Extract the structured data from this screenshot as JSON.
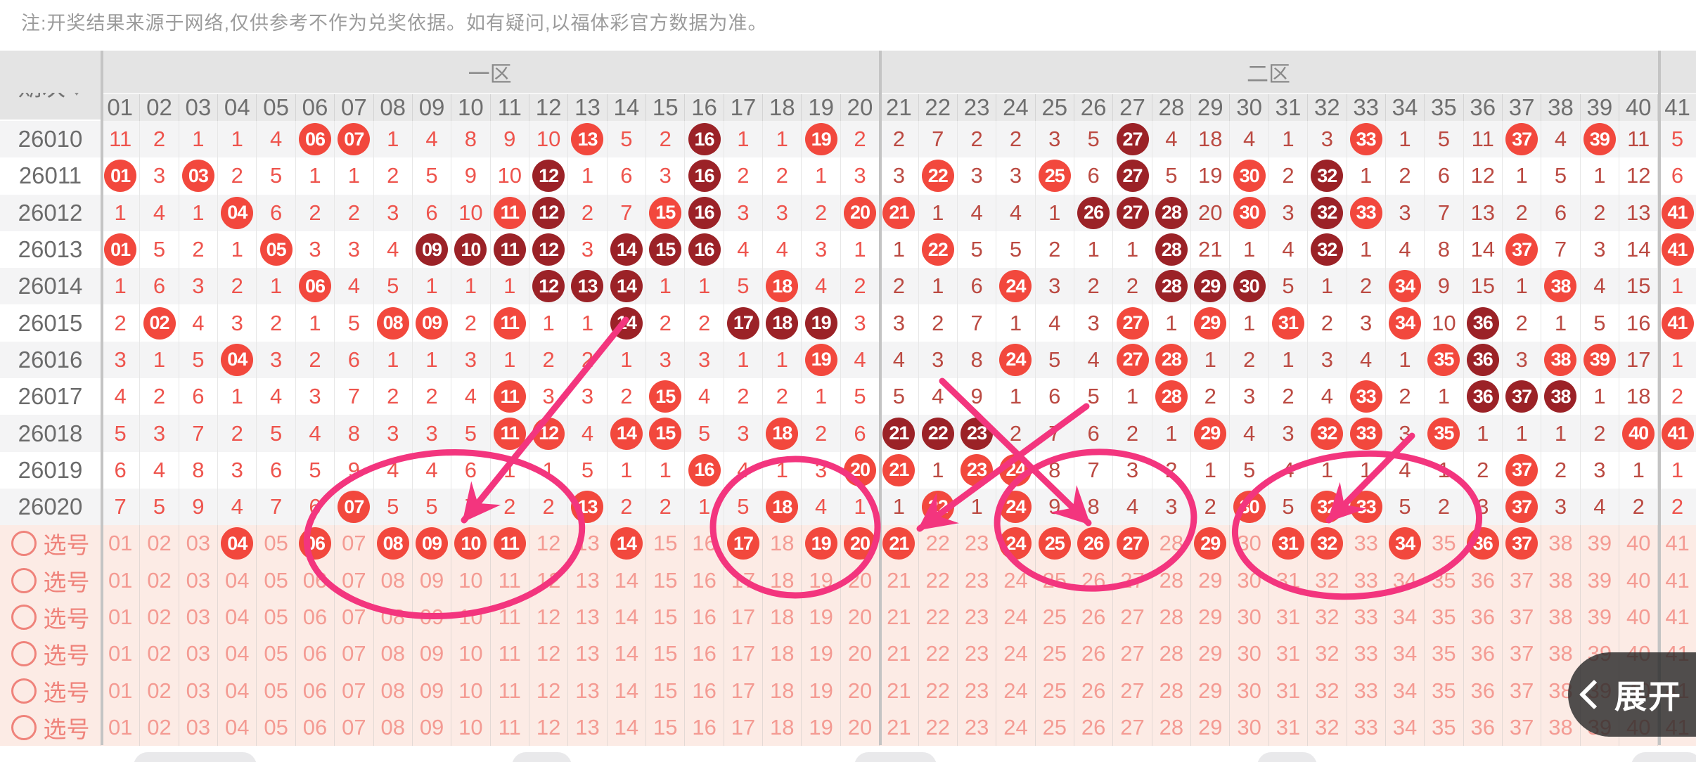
{
  "note": "注:开奖结果来源于网络,仅供参考不作为兑奖依据。如有疑问,以福体彩官方数据为准。",
  "header": {
    "period_label": "期次",
    "zones": [
      {
        "label": "一区",
        "col_span": 20
      },
      {
        "label": "二区",
        "col_span": 20
      },
      {
        "label": "",
        "col_span": 1
      }
    ],
    "columns": [
      "01",
      "02",
      "03",
      "04",
      "05",
      "06",
      "07",
      "08",
      "09",
      "10",
      "11",
      "12",
      "13",
      "14",
      "15",
      "16",
      "17",
      "18",
      "19",
      "20",
      "21",
      "22",
      "23",
      "24",
      "25",
      "26",
      "27",
      "28",
      "29",
      "30",
      "31",
      "32",
      "33",
      "34",
      "35",
      "36",
      "37",
      "38",
      "39",
      "40",
      "41"
    ]
  },
  "legend_note": "cells: plain string = miss count, *NN = drawn ball (bright red), #NN = drawn ball (dark red)",
  "rows": [
    {
      "period": "26010",
      "cells": [
        "11",
        "2",
        "1",
        "1",
        "4",
        "*06",
        "*07",
        "1",
        "4",
        "8",
        "9",
        "10",
        "*13",
        "5",
        "2",
        "#16",
        "1",
        "1",
        "*19",
        "2",
        "2",
        "7",
        "2",
        "2",
        "3",
        "5",
        "#27",
        "4",
        "18",
        "4",
        "1",
        "3",
        "*33",
        "1",
        "5",
        "11",
        "*37",
        "4",
        "*39",
        "11",
        "5"
      ]
    },
    {
      "period": "26011",
      "cells": [
        "*01",
        "3",
        "*03",
        "2",
        "5",
        "1",
        "1",
        "2",
        "5",
        "9",
        "10",
        "#12",
        "1",
        "6",
        "3",
        "#16",
        "2",
        "2",
        "1",
        "3",
        "3",
        "*22",
        "3",
        "3",
        "*25",
        "6",
        "#27",
        "5",
        "19",
        "*30",
        "2",
        "#32",
        "1",
        "2",
        "6",
        "12",
        "1",
        "5",
        "1",
        "12",
        "6"
      ]
    },
    {
      "period": "26012",
      "cells": [
        "1",
        "4",
        "1",
        "*04",
        "6",
        "2",
        "2",
        "3",
        "6",
        "10",
        "*11",
        "#12",
        "2",
        "7",
        "*15",
        "#16",
        "3",
        "3",
        "2",
        "*20",
        "*21",
        "1",
        "4",
        "4",
        "1",
        "#26",
        "#27",
        "#28",
        "20",
        "*30",
        "3",
        "#32",
        "*33",
        "3",
        "7",
        "13",
        "2",
        "6",
        "2",
        "13",
        "*41"
      ]
    },
    {
      "period": "26013",
      "cells": [
        "*01",
        "5",
        "2",
        "1",
        "*05",
        "3",
        "3",
        "4",
        "#09",
        "#10",
        "#11",
        "#12",
        "3",
        "#14",
        "#15",
        "#16",
        "4",
        "4",
        "3",
        "1",
        "1",
        "*22",
        "5",
        "5",
        "2",
        "1",
        "1",
        "#28",
        "21",
        "1",
        "4",
        "#32",
        "1",
        "4",
        "8",
        "14",
        "*37",
        "7",
        "3",
        "14",
        "*41"
      ]
    },
    {
      "period": "26014",
      "cells": [
        "1",
        "6",
        "3",
        "2",
        "1",
        "*06",
        "4",
        "5",
        "1",
        "1",
        "1",
        "#12",
        "#13",
        "#14",
        "1",
        "1",
        "5",
        "*18",
        "4",
        "2",
        "2",
        "1",
        "6",
        "*24",
        "3",
        "2",
        "2",
        "#28",
        "#29",
        "#30",
        "5",
        "1",
        "2",
        "*34",
        "9",
        "15",
        "1",
        "*38",
        "4",
        "15",
        "1"
      ]
    },
    {
      "period": "26015",
      "cells": [
        "2",
        "*02",
        "4",
        "3",
        "2",
        "1",
        "5",
        "*08",
        "*09",
        "2",
        "*11",
        "1",
        "1",
        "#14",
        "2",
        "2",
        "#17",
        "#18",
        "#19",
        "3",
        "3",
        "2",
        "7",
        "1",
        "4",
        "3",
        "*27",
        "1",
        "*29",
        "1",
        "*31",
        "2",
        "3",
        "*34",
        "10",
        "#36",
        "2",
        "1",
        "5",
        "16",
        "*41"
      ]
    },
    {
      "period": "26016",
      "cells": [
        "3",
        "1",
        "5",
        "*04",
        "3",
        "2",
        "6",
        "1",
        "1",
        "3",
        "1",
        "2",
        "2",
        "1",
        "3",
        "3",
        "1",
        "1",
        "*19",
        "4",
        "4",
        "3",
        "8",
        "*24",
        "5",
        "4",
        "*27",
        "*28",
        "1",
        "2",
        "1",
        "3",
        "4",
        "1",
        "*35",
        "#36",
        "3",
        "*38",
        "*39",
        "17",
        "1"
      ]
    },
    {
      "period": "26017",
      "cells": [
        "4",
        "2",
        "6",
        "1",
        "4",
        "3",
        "7",
        "2",
        "2",
        "4",
        "*11",
        "3",
        "3",
        "2",
        "*15",
        "4",
        "2",
        "2",
        "1",
        "5",
        "5",
        "4",
        "9",
        "1",
        "6",
        "5",
        "1",
        "*28",
        "2",
        "3",
        "2",
        "4",
        "*33",
        "2",
        "1",
        "#36",
        "#37",
        "#38",
        "1",
        "18",
        "2"
      ]
    },
    {
      "period": "26018",
      "cells": [
        "5",
        "3",
        "7",
        "2",
        "5",
        "4",
        "8",
        "3",
        "3",
        "5",
        "*11",
        "*12",
        "4",
        "*14",
        "*15",
        "5",
        "3",
        "*18",
        "2",
        "6",
        "#21",
        "#22",
        "#23",
        "2",
        "7",
        "6",
        "2",
        "1",
        "*29",
        "4",
        "3",
        "*32",
        "*33",
        "3",
        "*35",
        "1",
        "1",
        "1",
        "2",
        "*40",
        "*41"
      ]
    },
    {
      "period": "26019",
      "cells": [
        "6",
        "4",
        "8",
        "3",
        "6",
        "5",
        "9",
        "4",
        "4",
        "6",
        "1",
        "1",
        "5",
        "1",
        "1",
        "*16",
        "4",
        "1",
        "3",
        "*20",
        "*21",
        "1",
        "*23",
        "*24",
        "8",
        "7",
        "3",
        "2",
        "1",
        "5",
        "4",
        "1",
        "1",
        "4",
        "1",
        "2",
        "*37",
        "2",
        "3",
        "1",
        "1"
      ]
    },
    {
      "period": "26020",
      "cells": [
        "7",
        "5",
        "9",
        "4",
        "7",
        "6",
        "*07",
        "5",
        "5",
        "7",
        "2",
        "2",
        "*13",
        "2",
        "2",
        "1",
        "5",
        "*18",
        "4",
        "1",
        "1",
        "*22",
        "1",
        "*24",
        "9",
        "8",
        "4",
        "3",
        "2",
        "*30",
        "5",
        "*32",
        "*33",
        "5",
        "2",
        "3",
        "*37",
        "3",
        "4",
        "2",
        "2"
      ]
    }
  ],
  "pick": {
    "label": "选号",
    "rows": [
      {
        "selected": [
          4,
          6,
          8,
          9,
          10,
          11,
          14,
          17,
          19,
          20,
          21,
          24,
          25,
          26,
          27,
          29,
          31,
          32,
          34,
          36,
          37
        ]
      },
      {
        "selected": []
      },
      {
        "selected": []
      },
      {
        "selected": []
      },
      {
        "selected": []
      },
      {
        "selected": []
      }
    ]
  },
  "expand_button": {
    "label": "展开"
  },
  "colors": {
    "ball_bright": "#f2483d",
    "ball_dark": "#9b2227",
    "zone1_text": "#ee544d",
    "zone2_text": "#bb4a42",
    "pick_bg": "#fcebe5",
    "pick_text": "#f49b93",
    "pick_accent": "#ef837b",
    "annotation_pink": "#f3357e",
    "header_bg": "#e4e4e4",
    "header_text": "#6f6f6f",
    "note_text": "#9b9b9b",
    "period_text": "#6b6b6b"
  }
}
